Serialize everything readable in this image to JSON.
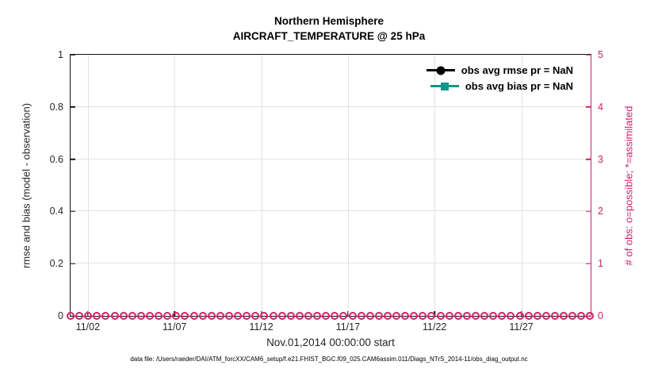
{
  "figure": {
    "title_line1": "Northern Hemisphere",
    "title_line2": "AIRCRAFT_TEMPERATURE @ 25 hPa",
    "footnote": "data file: /Users/raeder/DAI/ATM_forcXX/CAM6_setup/f.e21.FHIST_BGC.f09_025.CAM6assim.011/Diags_NTrS_2014-11/obs_diag_output.nc"
  },
  "chart_data": {
    "type": "line",
    "title": "Northern Hemisphere",
    "subtitle": "AIRCRAFT_TEMPERATURE @ 25 hPa",
    "xlabel": "Nov.01,2014 00:00:00 start",
    "grid": true,
    "legend_position": "top-right-inside",
    "x_axis": {
      "start": "Nov.01,2014 00:00:00",
      "range_days": 30,
      "ticks": [
        {
          "label": "11/02",
          "pos": 3.33
        },
        {
          "label": "11/07",
          "pos": 20
        },
        {
          "label": "11/12",
          "pos": 36.67
        },
        {
          "label": "11/17",
          "pos": 53.33
        },
        {
          "label": "11/22",
          "pos": 70
        },
        {
          "label": "11/27",
          "pos": 86.67
        }
      ]
    },
    "left_axis": {
      "label": "rmse and bias (model - observation)",
      "lim": [
        0,
        1
      ],
      "color": "#262626",
      "ticks": [
        {
          "label": "0",
          "pos": 0
        },
        {
          "label": "0.2",
          "pos": 20
        },
        {
          "label": "0.4",
          "pos": 40
        },
        {
          "label": "0.6",
          "pos": 60
        },
        {
          "label": "0.8",
          "pos": 80
        },
        {
          "label": "1",
          "pos": 100
        }
      ]
    },
    "right_axis": {
      "label": "# of obs: o=possible; *=assimilated",
      "lim": [
        0,
        5
      ],
      "color": "#cf2069",
      "ticks": [
        {
          "label": "0",
          "pos": 0
        },
        {
          "label": "1",
          "pos": 20
        },
        {
          "label": "2",
          "pos": 40
        },
        {
          "label": "3",
          "pos": 60
        },
        {
          "label": "4",
          "pos": 80
        },
        {
          "label": "5",
          "pos": 100
        }
      ]
    },
    "legend": [
      {
        "label": "obs avg rmse pr = NaN",
        "marker": "circle",
        "color": "#000000"
      },
      {
        "label": "obs avg bias pr = NaN",
        "marker": "square",
        "color": "#0f968b"
      }
    ],
    "series": [
      {
        "name": "obs avg rmse",
        "axis": "left",
        "values": "NaN (no curve plotted)"
      },
      {
        "name": "obs avg bias",
        "axis": "left",
        "values": "NaN (no curve plotted)"
      },
      {
        "name": "# of obs possible",
        "axis": "right",
        "marker": "open-circle",
        "constant_value": 0,
        "bins": 60
      }
    ],
    "obs_markers": {
      "count": 60,
      "value": 0,
      "color": "#cf2069"
    }
  }
}
